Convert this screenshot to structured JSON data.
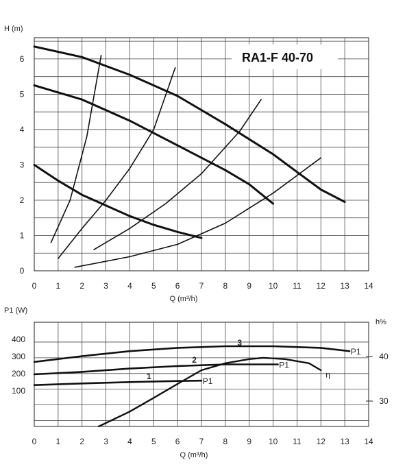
{
  "chart_data": [
    {
      "type": "line",
      "title": "RA1-F 40-70",
      "xlabel": "Q (m³/h)",
      "ylabel": "H (m)",
      "xlim": [
        0,
        14
      ],
      "ylim": [
        0,
        6.6
      ],
      "x_ticks": [
        "0",
        "1",
        "2",
        "3",
        "4",
        "5",
        "6",
        "7",
        "8",
        "9",
        "10",
        "11",
        "12",
        "13",
        "14"
      ],
      "y_ticks": [
        "0",
        "1",
        "2",
        "3",
        "4",
        "5",
        "6"
      ],
      "grid": true,
      "series": [
        {
          "points": [
            [
              0,
              6.35
            ],
            [
              2,
              6.05
            ],
            [
              4,
              5.55
            ],
            [
              6,
              4.95
            ],
            [
              8,
              4.15
            ],
            [
              10,
              3.3
            ],
            [
              11,
              2.8
            ],
            [
              12,
              2.3
            ],
            [
              13,
              1.95
            ]
          ]
        },
        {
          "points": [
            [
              0,
              5.25
            ],
            [
              2,
              4.85
            ],
            [
              4,
              4.25
            ],
            [
              6,
              3.55
            ],
            [
              8,
              2.85
            ],
            [
              9,
              2.45
            ],
            [
              10,
              1.9
            ]
          ]
        },
        {
          "points": [
            [
              0,
              3.0
            ],
            [
              1,
              2.55
            ],
            [
              2,
              2.15
            ],
            [
              3,
              1.85
            ],
            [
              4,
              1.55
            ],
            [
              5,
              1.3
            ],
            [
              6,
              1.1
            ],
            [
              7,
              0.93
            ]
          ]
        }
      ],
      "system_curves": [
        {
          "points": [
            [
              0.7,
              0.8
            ],
            [
              1.5,
              2.0
            ],
            [
              2.2,
              3.8
            ],
            [
              2.8,
              6.1
            ]
          ]
        },
        {
          "points": [
            [
              1,
              0.35
            ],
            [
              2,
              1.2
            ],
            [
              3,
              2.0
            ],
            [
              4,
              2.9
            ],
            [
              5,
              4.0
            ],
            [
              5.9,
              5.75
            ]
          ]
        },
        {
          "points": [
            [
              2.5,
              0.6
            ],
            [
              4,
              1.2
            ],
            [
              5.5,
              1.9
            ],
            [
              7,
              2.75
            ],
            [
              8.6,
              3.95
            ],
            [
              9.5,
              4.85
            ]
          ]
        },
        {
          "points": [
            [
              1.7,
              0.1
            ],
            [
              4,
              0.4
            ],
            [
              6,
              0.75
            ],
            [
              8,
              1.35
            ],
            [
              10,
              2.2
            ],
            [
              12,
              3.2
            ]
          ]
        }
      ]
    },
    {
      "type": "line",
      "xlabel": "Q (m³/h)",
      "ylabel": "P1 (W)",
      "y2label": "h%",
      "xlim": [
        0,
        14
      ],
      "ylim": [
        -150,
        480
      ],
      "x_ticks": [
        "0",
        "1",
        "2",
        "3",
        "4",
        "5",
        "6",
        "7",
        "8",
        "9",
        "10",
        "11",
        "12",
        "13",
        "14"
      ],
      "y_ticks": [
        "100",
        "200",
        "300",
        "400"
      ],
      "y2_ticks": [
        "30",
        "40"
      ],
      "grid": true,
      "curve_labels": [
        "1",
        "2",
        "3"
      ],
      "series_labels": [
        "P1",
        "P1",
        "P1",
        "η"
      ],
      "series": [
        {
          "points": [
            [
              0,
              240
            ],
            [
              2,
              275
            ],
            [
              4,
              305
            ],
            [
              6,
              325
            ],
            [
              8,
              335
            ],
            [
              10,
              335
            ],
            [
              12,
              325
            ],
            [
              13.2,
              305
            ]
          ]
        },
        {
          "points": [
            [
              0,
              165
            ],
            [
              2,
              180
            ],
            [
              4,
              200
            ],
            [
              6,
              215
            ],
            [
              8,
              225
            ],
            [
              10.2,
              225
            ]
          ]
        },
        {
          "points": [
            [
              0,
              100
            ],
            [
              2,
              110
            ],
            [
              4,
              118
            ],
            [
              6,
              125
            ],
            [
              7,
              127
            ]
          ]
        },
        {
          "points": [
            [
              2.7,
              -163
            ],
            [
              4,
              -60
            ],
            [
              5,
              23
            ],
            [
              6,
              107
            ],
            [
              7,
              190
            ],
            [
              8,
              232
            ],
            [
              9,
              257
            ],
            [
              9.6,
              265
            ],
            [
              10.5,
              257
            ],
            [
              11.5,
              232
            ],
            [
              12,
              190
            ]
          ]
        }
      ]
    }
  ]
}
